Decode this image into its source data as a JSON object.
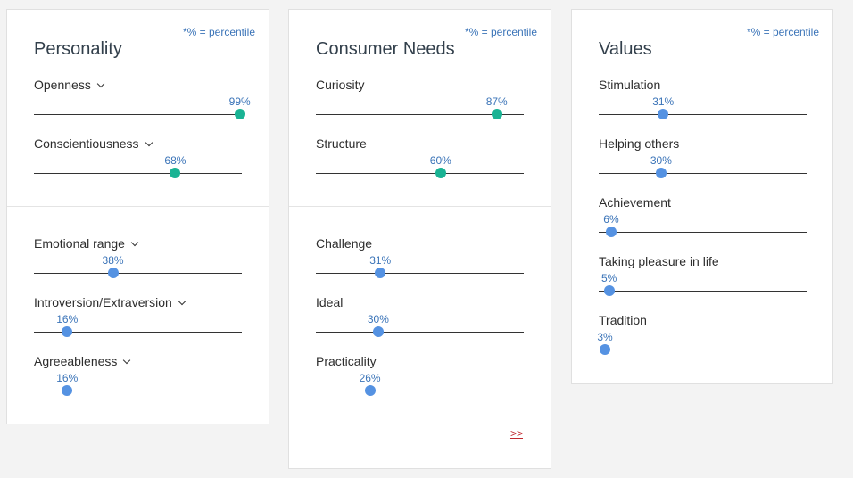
{
  "percentile_note": "*% = percentile",
  "personality": {
    "title": "Personality",
    "traits": [
      {
        "label": "Openness",
        "value": 99,
        "display": "99%",
        "dropdown": true,
        "high": true
      },
      {
        "label": "Conscientiousness",
        "value": 68,
        "display": "68%",
        "dropdown": true,
        "high": true
      },
      {
        "label": "Emotional range",
        "value": 38,
        "display": "38%",
        "dropdown": true,
        "high": false
      },
      {
        "label": "Introversion/Extraversion",
        "value": 16,
        "display": "16%",
        "dropdown": true,
        "high": false
      },
      {
        "label": "Agreeableness",
        "value": 16,
        "display": "16%",
        "dropdown": true,
        "high": false
      }
    ]
  },
  "consumer_needs": {
    "title": "Consumer Needs",
    "traits": [
      {
        "label": "Curiosity",
        "value": 87,
        "display": "87%",
        "high": true
      },
      {
        "label": "Structure",
        "value": 60,
        "display": "60%",
        "high": true
      },
      {
        "label": "Challenge",
        "value": 31,
        "display": "31%",
        "high": false
      },
      {
        "label": "Ideal",
        "value": 30,
        "display": "30%",
        "high": false
      },
      {
        "label": "Practicality",
        "value": 26,
        "display": "26%",
        "high": false
      }
    ],
    "more_link": ">>"
  },
  "values": {
    "title": "Values",
    "traits": [
      {
        "label": "Stimulation",
        "value": 31,
        "display": "31%",
        "high": false
      },
      {
        "label": "Helping others",
        "value": 30,
        "display": "30%",
        "high": false
      },
      {
        "label": "Achievement",
        "value": 6,
        "display": "6%",
        "high": false
      },
      {
        "label": "Taking pleasure in life",
        "value": 5,
        "display": "5%",
        "high": false
      },
      {
        "label": "Tradition",
        "value": 3,
        "display": "3%",
        "high": false
      }
    ]
  },
  "colors": {
    "accent_high": "#1ab394",
    "accent_low": "#5592e2",
    "percent_text": "#3b74b8",
    "link": "#c1272d"
  }
}
